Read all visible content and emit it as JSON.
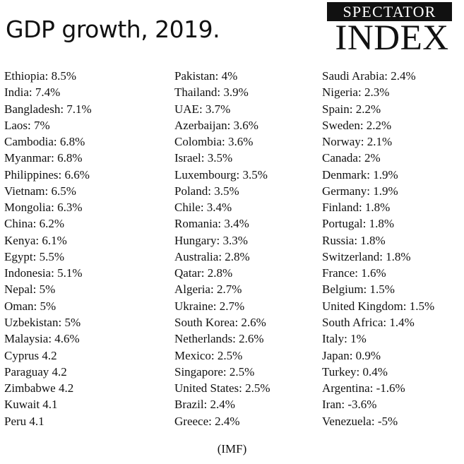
{
  "title": "GDP growth, 2019.",
  "logo": {
    "top": "SPECTATOR",
    "bottom": "INDEX"
  },
  "columns": [
    [
      "Ethiopia: 8.5%",
      "India: 7.4%",
      "Bangladesh: 7.1%",
      "Laos: 7%",
      "Cambodia: 6.8%",
      "Myanmar: 6.8%",
      "Philippines: 6.6%",
      "Vietnam: 6.5%",
      "Mongolia: 6.3%",
      "China: 6.2%",
      "Kenya: 6.1%",
      "Egypt: 5.5%",
      "Indonesia: 5.1%",
      "Nepal: 5%",
      "Oman: 5%",
      "Uzbekistan: 5%",
      "Malaysia: 4.6%",
      "Cyprus 4.2",
      "Paraguay 4.2",
      "Zimbabwe 4.2",
      "Kuwait 4.1",
      "Peru 4.1"
    ],
    [
      "Pakistan: 4%",
      "Thailand: 3.9%",
      "UAE: 3.7%",
      "Azerbaijan: 3.6%",
      "Colombia: 3.6%",
      "Israel: 3.5%",
      "Luxembourg: 3.5%",
      "Poland: 3.5%",
      "Chile: 3.4%",
      "Romania: 3.4%",
      "Hungary: 3.3%",
      "Australia: 2.8%",
      "Qatar: 2.8%",
      "Algeria: 2.7%",
      "Ukraine: 2.7%",
      "South Korea: 2.6%",
      "Netherlands: 2.6%",
      "Mexico: 2.5%",
      "Singapore: 2.5%",
      "United States: 2.5%",
      "Brazil: 2.4%",
      "Greece: 2.4%"
    ],
    [
      "Saudi Arabia: 2.4%",
      "Nigeria: 2.3%",
      "Spain: 2.2%",
      "Sweden: 2.2%",
      "Norway: 2.1%",
      "Canada: 2%",
      "Denmark: 1.9%",
      "Germany: 1.9%",
      "Finland: 1.8%",
      "Portugal: 1.8%",
      "Russia: 1.8%",
      "Switzerland: 1.8%",
      "France: 1.6%",
      "Belgium: 1.5%",
      "United Kingdom: 1.5%",
      "South Africa: 1.4%",
      "Italy: 1%",
      "Japan: 0.9%",
      "Turkey: 0.4%",
      "Argentina: -1.6%",
      "Iran: -3.6%",
      "Venezuela: -5%"
    ]
  ],
  "source": "(IMF)"
}
